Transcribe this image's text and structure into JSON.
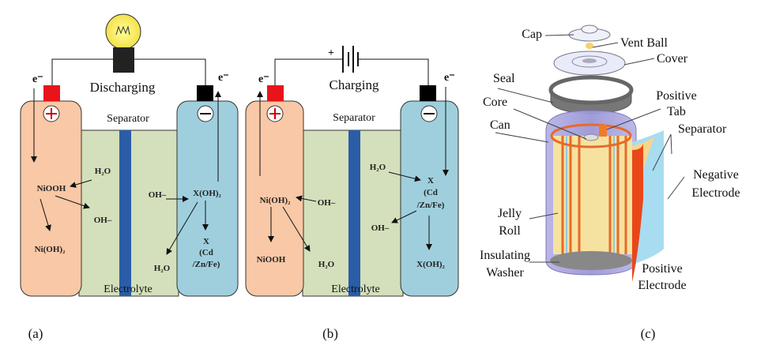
{
  "panel_a": {
    "caption": "(a)",
    "mode": "Discharging",
    "separator": "Separator",
    "electrolyte": "Electrolyte",
    "electron_left": "e⁻",
    "electron_right": "e⁻",
    "positive_species": [
      "NiOOH",
      "Ni(OH)₂"
    ],
    "electrolyte_species": [
      "H₂O",
      "OH–",
      "OH–",
      "H₂O"
    ],
    "negative_species": [
      "X(OH)₂",
      "X",
      "(Cd",
      "/Zn/Fe)"
    ]
  },
  "panel_b": {
    "caption": "(b)",
    "mode": "Charging",
    "battery_plus": "+",
    "separator": "Separator",
    "electrolyte": "Electrolyte",
    "electron_left": "e⁻",
    "electron_right": "e⁻",
    "positive_species": [
      "Ni(OH)₂",
      "NiOOH"
    ],
    "electrolyte_species": [
      "OH–",
      "H₂O",
      "H₂O",
      "OH–"
    ],
    "negative_species": [
      "X",
      "(Cd",
      "/Zn/Fe)",
      "X(OH)₂"
    ]
  },
  "panel_c": {
    "caption": "(c)",
    "labels": {
      "cap": "Cap",
      "vent_ball": "Vent Ball",
      "cover": "Cover",
      "seal": "Seal",
      "core": "Core",
      "positive_tab": [
        "Positive",
        "Tab"
      ],
      "can": "Can",
      "separator": "Separator",
      "negative_electrode": [
        "Negative",
        "Electrode"
      ],
      "jelly_roll": [
        "Jelly",
        "Roll"
      ],
      "insulating_washer": [
        "Insulating",
        "Washer"
      ],
      "positive_electrode": [
        "Positive",
        "Electrode"
      ]
    }
  },
  "colors": {
    "positive_electrode": "#f9c8a6",
    "negative_electrode": "#9fcfdd",
    "electrolyte": "#d4e0bb",
    "separator": "#2a5ca8",
    "positive_terminal": "#e8141a",
    "negative_terminal": "#000000"
  }
}
